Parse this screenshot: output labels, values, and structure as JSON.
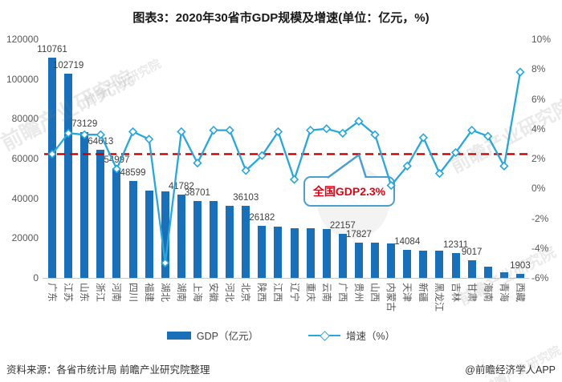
{
  "title": "图表3：2020年30省市GDP规模及增速(单位：亿元，%)",
  "watermark": {
    "text": "前瞻产业研究院"
  },
  "annotation": {
    "text": "全国GDP2.3%"
  },
  "legend": [
    {
      "label": "GDP（亿元）",
      "type": "bar"
    },
    {
      "label": "增速（%）",
      "type": "line"
    }
  ],
  "footer": {
    "source": "资料来源：各省市统计局 前瞻产业研究院整理",
    "credit": "@前瞻经济学人APP"
  },
  "chart_data": {
    "type": "bar",
    "title": "图表3：2020年30省市GDP规模及增速(单位：亿元，%)",
    "categories": [
      "广东",
      "江苏",
      "山东",
      "浙江",
      "河南",
      "四川",
      "福建",
      "湖北",
      "湖南",
      "上海",
      "安徽",
      "河北",
      "北京",
      "陕西",
      "江西",
      "辽宁",
      "重庆",
      "云南",
      "广西",
      "贵州",
      "山西",
      "内蒙古",
      "天津",
      "新疆",
      "黑龙江",
      "吉林",
      "甘肃",
      "海南",
      "青海",
      "西藏"
    ],
    "series": [
      {
        "name": "GDP（亿元）",
        "type": "bar",
        "axis": "left",
        "values": [
          110761,
          102719,
          73129,
          64613,
          54997,
          48599,
          43904,
          43443,
          41782,
          38701,
          38681,
          36207,
          36103,
          26182,
          25692,
          25115,
          25003,
          24522,
          22157,
          17827,
          17652,
          17360,
          14084,
          13798,
          13699,
          12311,
          9017,
          5532,
          3006,
          1903
        ],
        "labeled": [
          true,
          true,
          true,
          true,
          true,
          true,
          false,
          false,
          true,
          true,
          false,
          false,
          true,
          true,
          false,
          false,
          false,
          false,
          true,
          true,
          false,
          false,
          true,
          false,
          false,
          true,
          true,
          false,
          false,
          true
        ]
      },
      {
        "name": "增速（%）",
        "type": "line",
        "axis": "right",
        "values": [
          2.3,
          3.7,
          3.6,
          3.6,
          1.3,
          3.8,
          3.3,
          -5.0,
          3.8,
          1.7,
          3.9,
          3.9,
          1.2,
          2.2,
          3.8,
          0.6,
          3.9,
          4.0,
          3.7,
          4.5,
          3.6,
          0.2,
          1.5,
          3.4,
          1.0,
          2.4,
          3.9,
          3.5,
          1.5,
          7.8
        ]
      }
    ],
    "left_axis": {
      "ticks": [
        "120000",
        "100000",
        "80000",
        "60000",
        "40000",
        "20000",
        "0"
      ],
      "min": 0,
      "max": 120000
    },
    "right_axis": {
      "ticks": [
        "10%",
        "8%",
        "6%",
        "4%",
        "2%",
        "0%",
        "-2%",
        "-4%",
        "-6%"
      ],
      "min": -6,
      "max": 10
    },
    "reference_line": {
      "value": 2.3,
      "label": "全国GDP2.3%",
      "color": "#C00000"
    },
    "colors": {
      "bar": "#1A70B8",
      "line": "#29A7DC"
    },
    "legend_position": "bottom",
    "grid": false
  }
}
